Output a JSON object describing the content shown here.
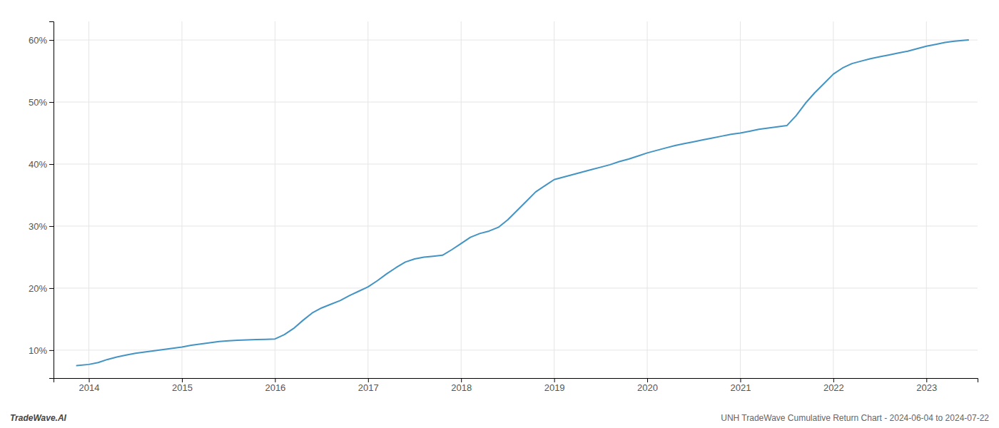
{
  "chart_data": {
    "type": "line",
    "annotations": [
      "TradeWave.AI",
      "UNH TradeWave Cumulative Return Chart - 2024-06-04 to 2024-07-22"
    ],
    "x": [
      2013.87,
      2014.0,
      2014.1,
      2014.2,
      2014.3,
      2014.4,
      2014.5,
      2014.6,
      2014.7,
      2014.8,
      2014.9,
      2015.0,
      2015.1,
      2015.2,
      2015.3,
      2015.4,
      2015.5,
      2015.6,
      2015.7,
      2015.8,
      2015.9,
      2016.0,
      2016.1,
      2016.2,
      2016.3,
      2016.4,
      2016.5,
      2016.6,
      2016.7,
      2016.8,
      2016.9,
      2017.0,
      2017.1,
      2017.2,
      2017.3,
      2017.4,
      2017.5,
      2017.6,
      2017.7,
      2017.8,
      2017.9,
      2018.0,
      2018.1,
      2018.2,
      2018.3,
      2018.4,
      2018.5,
      2018.6,
      2018.7,
      2018.8,
      2018.9,
      2019.0,
      2019.1,
      2019.2,
      2019.3,
      2019.4,
      2019.5,
      2019.6,
      2019.7,
      2019.8,
      2019.9,
      2020.0,
      2020.1,
      2020.2,
      2020.3,
      2020.4,
      2020.5,
      2020.6,
      2020.7,
      2020.8,
      2020.9,
      2021.0,
      2021.1,
      2021.2,
      2021.3,
      2021.4,
      2021.5,
      2021.6,
      2021.7,
      2021.8,
      2021.9,
      2022.0,
      2022.1,
      2022.2,
      2022.3,
      2022.4,
      2022.5,
      2022.6,
      2022.7,
      2022.8,
      2022.9,
      2023.0,
      2023.1,
      2023.2,
      2023.3,
      2023.45
    ],
    "values": [
      7.5,
      7.7,
      8.0,
      8.5,
      8.9,
      9.2,
      9.5,
      9.7,
      9.9,
      10.1,
      10.3,
      10.5,
      10.8,
      11.0,
      11.2,
      11.4,
      11.5,
      11.6,
      11.65,
      11.7,
      11.75,
      11.8,
      12.5,
      13.5,
      14.8,
      16.0,
      16.8,
      17.4,
      18.0,
      18.8,
      19.5,
      20.2,
      21.2,
      22.3,
      23.3,
      24.2,
      24.7,
      25.0,
      25.15,
      25.3,
      26.2,
      27.2,
      28.2,
      28.8,
      29.2,
      29.8,
      31.0,
      32.5,
      34.0,
      35.5,
      36.5,
      37.5,
      37.9,
      38.3,
      38.7,
      39.1,
      39.5,
      39.9,
      40.4,
      40.8,
      41.3,
      41.8,
      42.2,
      42.6,
      43.0,
      43.3,
      43.6,
      43.9,
      44.2,
      44.5,
      44.8,
      45.0,
      45.3,
      45.6,
      45.8,
      46.0,
      46.2,
      47.8,
      49.8,
      51.5,
      53.0,
      54.5,
      55.5,
      56.2,
      56.6,
      57.0,
      57.3,
      57.6,
      57.9,
      58.2,
      58.6,
      59.0,
      59.3,
      59.6,
      59.8,
      60.0
    ],
    "color": "#4393c3",
    "xlim": [
      2013.62,
      2023.55
    ],
    "ylim": [
      5.5,
      63
    ],
    "xticks": [
      2014,
      2015,
      2016,
      2017,
      2018,
      2019,
      2020,
      2021,
      2022,
      2023
    ],
    "yticks": [
      {
        "value": 10,
        "label": "10%"
      },
      {
        "value": 20,
        "label": "20%"
      },
      {
        "value": 30,
        "label": "30%"
      },
      {
        "value": 40,
        "label": "40%"
      },
      {
        "value": 50,
        "label": "50%"
      },
      {
        "value": 60,
        "label": "60%"
      }
    ],
    "grid": true
  }
}
